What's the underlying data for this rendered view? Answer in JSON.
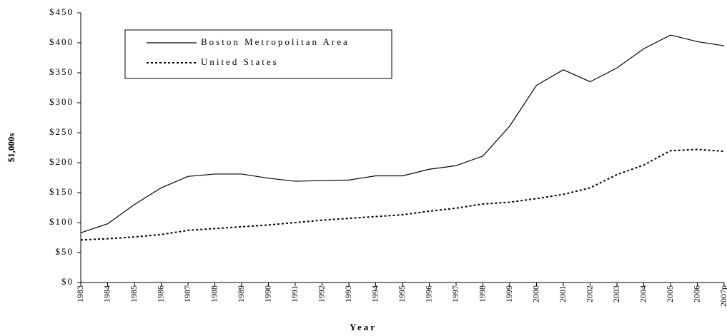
{
  "chart_data": {
    "type": "line",
    "xlabel": "Year",
    "ylabel": "$1,000s",
    "categories": [
      "1983",
      "1984",
      "1985",
      "1986",
      "1987",
      "1988",
      "1989",
      "1990",
      "1991",
      "1992",
      "1993",
      "1994",
      "1995",
      "1996",
      "1997",
      "1998",
      "1999",
      "2000",
      "2001",
      "2002",
      "2003",
      "2004",
      "2005",
      "2006",
      "2007p"
    ],
    "series": [
      {
        "name": "Boston Metropolitan Area",
        "color": "#000000",
        "style": "solid",
        "values": [
          83,
          98,
          130,
          158,
          177,
          181,
          181,
          174,
          169,
          170,
          171,
          178,
          178,
          189,
          195,
          211,
          261,
          329,
          355,
          335,
          358,
          390,
          413,
          402,
          395
        ]
      },
      {
        "name": "United States",
        "color": "#000000",
        "style": "dotted",
        "values": [
          71,
          73,
          76,
          80,
          87,
          90,
          93,
          96,
          100,
          104,
          107,
          110,
          113,
          119,
          124,
          131,
          134,
          140,
          147,
          158,
          180,
          196,
          220,
          222,
          219
        ]
      }
    ],
    "ylim": [
      0,
      450
    ],
    "yticks": [
      {
        "value": 0,
        "label": "$0"
      },
      {
        "value": 50,
        "label": "$50"
      },
      {
        "value": 100,
        "label": "$100"
      },
      {
        "value": 150,
        "label": "$150"
      },
      {
        "value": 200,
        "label": "$200"
      },
      {
        "value": 250,
        "label": "$250"
      },
      {
        "value": 300,
        "label": "$300"
      },
      {
        "value": 350,
        "label": "$350"
      },
      {
        "value": 400,
        "label": "$400"
      },
      {
        "value": 450,
        "label": "$450"
      }
    ],
    "legend": "upper left"
  }
}
